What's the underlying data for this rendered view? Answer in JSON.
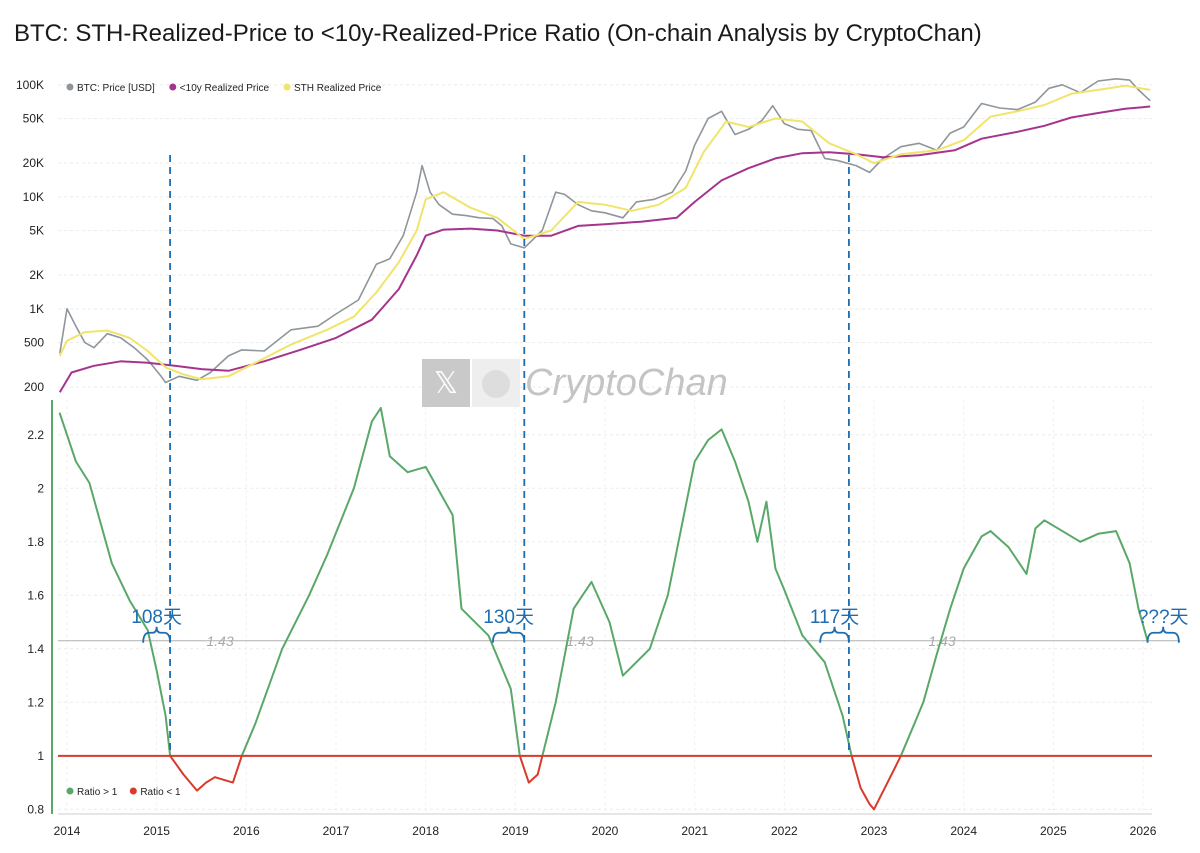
{
  "title": "BTC: STH-Realized-Price to <10y-Realized-Price Ratio (On-chain Analysis by CryptoChan)",
  "watermark": {
    "text": "CryptoChan",
    "icons": [
      "x-logo-icon",
      "avatar-icon"
    ]
  },
  "colors": {
    "price": "#8f969b",
    "realized10y": "#a6348d",
    "sth": "#f1e46a",
    "ratio_up": "#5aa869",
    "ratio_down": "#d83a2b",
    "ref_line": "#b0b0b0",
    "annotation": "#1f6db0",
    "axis": "#5aa869"
  },
  "chart_data": [
    {
      "type": "line",
      "yscale": "log",
      "ylim": [
        160,
        130000
      ],
      "yticks": [
        200,
        500,
        1000,
        2000,
        5000,
        10000,
        20000,
        50000,
        100000
      ],
      "ytick_labels": [
        "200",
        "500",
        "1K",
        "2K",
        "5K",
        "10K",
        "20K",
        "50K",
        "100K"
      ],
      "xlim": [
        2013.9,
        2026.1
      ],
      "legend": "top-left",
      "series": [
        {
          "name": "BTC: Price [USD]",
          "key": "price",
          "x": [
            2013.92,
            2014.0,
            2014.1,
            2014.2,
            2014.3,
            2014.45,
            2014.6,
            2014.75,
            2014.9,
            2015.05,
            2015.1,
            2015.25,
            2015.45,
            2015.6,
            2015.8,
            2015.95,
            2016.2,
            2016.5,
            2016.8,
            2017.0,
            2017.25,
            2017.45,
            2017.6,
            2017.75,
            2017.9,
            2017.96,
            2018.05,
            2018.15,
            2018.3,
            2018.45,
            2018.6,
            2018.75,
            2018.85,
            2018.95,
            2019.1,
            2019.3,
            2019.45,
            2019.55,
            2019.7,
            2019.85,
            2020.0,
            2020.2,
            2020.35,
            2020.55,
            2020.75,
            2020.9,
            2021.0,
            2021.15,
            2021.3,
            2021.45,
            2021.6,
            2021.75,
            2021.87,
            2022.0,
            2022.15,
            2022.3,
            2022.45,
            2022.6,
            2022.8,
            2022.95,
            2023.1,
            2023.3,
            2023.5,
            2023.7,
            2023.85,
            2024.0,
            2024.2,
            2024.4,
            2024.6,
            2024.8,
            2024.95,
            2025.1,
            2025.3,
            2025.5,
            2025.7,
            2025.85,
            2025.95,
            2026.08
          ],
          "y": [
            400,
            1000,
            700,
            500,
            450,
            600,
            550,
            450,
            350,
            250,
            220,
            250,
            230,
            270,
            380,
            430,
            420,
            650,
            700,
            900,
            1200,
            2500,
            2800,
            4500,
            11000,
            19000,
            11000,
            8500,
            7000,
            6800,
            6500,
            6400,
            5500,
            3800,
            3500,
            5000,
            11000,
            10500,
            8500,
            7500,
            7200,
            6500,
            9000,
            9500,
            11000,
            17000,
            29000,
            50000,
            58000,
            36000,
            40000,
            48000,
            65000,
            45000,
            40000,
            39000,
            22000,
            21000,
            19000,
            16500,
            22000,
            28000,
            30000,
            26000,
            37000,
            42000,
            68000,
            62000,
            60000,
            70000,
            93000,
            100000,
            85000,
            108000,
            113000,
            110000,
            90000,
            72000
          ]
        },
        {
          "name": "<10y Realized Price",
          "key": "realized10y",
          "x": [
            2013.92,
            2014.05,
            2014.3,
            2014.6,
            2014.9,
            2015.2,
            2015.5,
            2015.8,
            2016.2,
            2016.6,
            2017.0,
            2017.4,
            2017.7,
            2017.9,
            2018.0,
            2018.2,
            2018.5,
            2018.8,
            2019.1,
            2019.4,
            2019.7,
            2020.0,
            2020.4,
            2020.8,
            2021.0,
            2021.3,
            2021.6,
            2021.9,
            2022.2,
            2022.5,
            2022.8,
            2023.1,
            2023.5,
            2023.9,
            2024.2,
            2024.6,
            2024.9,
            2025.2,
            2025.5,
            2025.8,
            2026.08
          ],
          "y": [
            180,
            270,
            310,
            340,
            330,
            310,
            290,
            280,
            340,
            430,
            550,
            800,
            1500,
            3000,
            4500,
            5100,
            5200,
            5000,
            4500,
            4500,
            5500,
            5700,
            6000,
            6500,
            9000,
            14000,
            18000,
            22000,
            24500,
            25000,
            24000,
            22500,
            23500,
            26000,
            33000,
            38000,
            43000,
            51000,
            56000,
            61000,
            64000
          ]
        },
        {
          "name": "STH Realized Price",
          "key": "sth",
          "x": [
            2013.92,
            2014.0,
            2014.2,
            2014.45,
            2014.7,
            2014.9,
            2015.1,
            2015.3,
            2015.5,
            2015.8,
            2016.1,
            2016.5,
            2016.9,
            2017.2,
            2017.45,
            2017.7,
            2017.9,
            2018.0,
            2018.2,
            2018.5,
            2018.8,
            2019.1,
            2019.4,
            2019.7,
            2020.0,
            2020.3,
            2020.6,
            2020.9,
            2021.1,
            2021.35,
            2021.6,
            2021.9,
            2022.2,
            2022.5,
            2022.8,
            2023.0,
            2023.3,
            2023.7,
            2024.0,
            2024.3,
            2024.6,
            2024.9,
            2025.2,
            2025.5,
            2025.8,
            2026.08
          ],
          "y": [
            380,
            520,
            620,
            640,
            550,
            420,
            300,
            260,
            235,
            250,
            330,
            480,
            650,
            850,
            1400,
            2600,
            5000,
            9500,
            11000,
            8000,
            6500,
            4200,
            5000,
            9000,
            8500,
            7500,
            8500,
            12000,
            25000,
            47000,
            42000,
            50000,
            47000,
            30000,
            24000,
            20000,
            24000,
            26000,
            32000,
            52000,
            58000,
            66000,
            83000,
            90000,
            98000,
            90000
          ]
        }
      ]
    },
    {
      "type": "line",
      "ylim": [
        0.79,
        2.33
      ],
      "yticks": [
        0.8,
        1,
        1.2,
        1.4,
        1.6,
        1.8,
        2,
        2.2
      ],
      "ytick_labels": [
        "0.8",
        "1",
        "1.2",
        "1.4",
        "1.6",
        "1.8",
        "2",
        "2.2"
      ],
      "xlim": [
        2013.9,
        2026.1
      ],
      "xticks": [
        2014,
        2015,
        2016,
        2017,
        2018,
        2019,
        2020,
        2021,
        2022,
        2023,
        2024,
        2025,
        2026
      ],
      "xtick_labels": [
        "2014",
        "2015",
        "2016",
        "2017",
        "2018",
        "2019",
        "2020",
        "2021",
        "2022",
        "2023",
        "2024",
        "2025",
        "2026"
      ],
      "legend": "bottom-left",
      "legend_entries": [
        {
          "label": "Ratio > 1",
          "key": "ratio_up"
        },
        {
          "label": "Ratio < 1",
          "key": "ratio_down"
        }
      ],
      "series": [
        {
          "key": "ratio",
          "x": [
            2013.92,
            2014.0,
            2014.1,
            2014.25,
            2014.5,
            2014.7,
            2014.9,
            2015.0,
            2015.1,
            2015.15,
            2015.3,
            2015.45,
            2015.55,
            2015.65,
            2015.85,
            2015.95,
            2016.1,
            2016.4,
            2016.7,
            2016.9,
            2017.2,
            2017.4,
            2017.5,
            2017.6,
            2017.8,
            2018.0,
            2018.3,
            2018.4,
            2018.7,
            2018.95,
            2019.05,
            2019.15,
            2019.25,
            2019.45,
            2019.65,
            2019.85,
            2020.05,
            2020.2,
            2020.5,
            2020.7,
            2020.85,
            2021.0,
            2021.15,
            2021.3,
            2021.45,
            2021.6,
            2021.7,
            2021.8,
            2021.9,
            2022.0,
            2022.2,
            2022.45,
            2022.65,
            2022.75,
            2022.85,
            2022.95,
            2023.0,
            2023.15,
            2023.3,
            2023.45,
            2023.55,
            2023.7,
            2023.85,
            2024.0,
            2024.2,
            2024.3,
            2024.5,
            2024.7,
            2024.8,
            2024.9,
            2025.0,
            2025.3,
            2025.5,
            2025.7,
            2025.85,
            2025.95,
            2026.05
          ],
          "y": [
            2.28,
            2.2,
            2.1,
            2.02,
            1.72,
            1.58,
            1.47,
            1.32,
            1.15,
            1.0,
            0.93,
            0.87,
            0.9,
            0.92,
            0.9,
            1.0,
            1.12,
            1.4,
            1.6,
            1.75,
            2.0,
            2.25,
            2.3,
            2.12,
            2.06,
            2.08,
            1.9,
            1.55,
            1.45,
            1.25,
            1.0,
            0.9,
            0.93,
            1.2,
            1.55,
            1.65,
            1.5,
            1.3,
            1.4,
            1.6,
            1.85,
            2.1,
            2.18,
            2.22,
            2.1,
            1.95,
            1.8,
            1.95,
            1.7,
            1.62,
            1.45,
            1.35,
            1.15,
            1.0,
            0.88,
            0.82,
            0.8,
            0.9,
            1.0,
            1.12,
            1.2,
            1.38,
            1.55,
            1.7,
            1.82,
            1.84,
            1.78,
            1.68,
            1.85,
            1.88,
            1.86,
            1.8,
            1.83,
            1.84,
            1.72,
            1.55,
            1.43
          ]
        }
      ],
      "ref_line": {
        "y": 1.43,
        "label": "1.43"
      },
      "baseline": 1.0,
      "annotations": [
        {
          "label": "108天",
          "x_start": 2014.85,
          "x_end": 2015.15,
          "vline_x": 2015.15
        },
        {
          "label": "130天",
          "x_start": 2018.75,
          "x_end": 2019.1,
          "vline_x": 2019.1
        },
        {
          "label": "117天",
          "x_start": 2022.4,
          "x_end": 2022.72,
          "vline_x": 2022.72
        },
        {
          "label": "???天",
          "x_start": 2026.05,
          "x_end": 2026.4,
          "vline_x": null
        }
      ]
    }
  ]
}
